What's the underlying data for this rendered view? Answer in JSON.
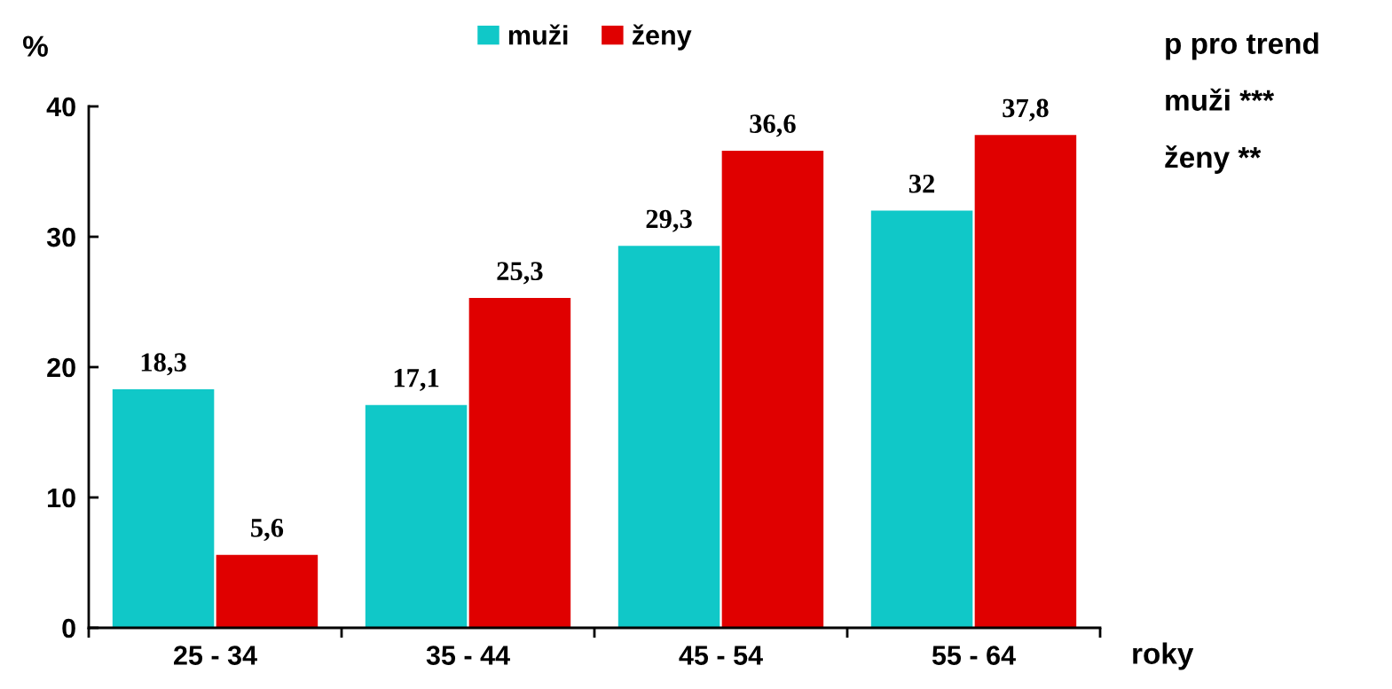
{
  "chart_data": {
    "type": "bar",
    "categories": [
      "25 - 34",
      "35 - 44",
      "45 - 54",
      "55 - 64"
    ],
    "series": [
      {
        "name": "muži",
        "color": "#10c8c8",
        "values": [
          18.3,
          17.1,
          29.3,
          32
        ],
        "value_labels": [
          "18,3",
          "17,1",
          "29,3",
          "32"
        ]
      },
      {
        "name": "ženy",
        "color": "#e00000",
        "values": [
          5.6,
          25.3,
          36.6,
          37.8
        ],
        "value_labels": [
          "5,6",
          "25,3",
          "36,6",
          "37,8"
        ]
      }
    ],
    "ylabel": "%",
    "xlabel": "roky",
    "ylim": [
      0,
      40
    ],
    "yticks": [
      0,
      10,
      20,
      30,
      40
    ],
    "grid": false,
    "legend": "top",
    "annotations": [
      "p pro trend",
      "muži ***",
      "ženy **"
    ]
  }
}
